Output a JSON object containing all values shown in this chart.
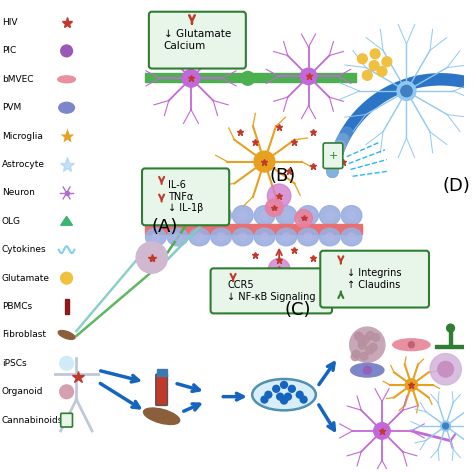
{
  "background_color": "#ffffff",
  "legend_labels": [
    "HIV",
    "PIC",
    "bMVEC",
    "PVM",
    "Microglia",
    "Astrocyte",
    "Neuron",
    "OLG",
    "Cytokines",
    "Glutamate",
    "PBMCs",
    "Fibroblast",
    "iPSCs",
    "Organoid",
    "Cannabinoids"
  ],
  "box_A_text": "(A)",
  "box_B_text": "(B)",
  "box_C_text": "(C)",
  "box_D_text": "(D)",
  "box_glut_text": "↓ Glutamate\nCalcium",
  "box_il6_text": "IL-6\nTNFα\n↓ IL-1β",
  "box_ccr5_text": "CCR5\n↓ NF-κB Signaling",
  "box_integ_text": "↓ Integrins\n↑ Claudins",
  "neuron_purple": "#c368d8",
  "neuron_purple2": "#ab47bc",
  "microglia_color": "#e8a020",
  "astrocyte_color": "#90c8f0",
  "bbb_cell_color": "#9baee0",
  "bbb_stripe_color": "#e87070",
  "green_bar_color": "#4caf50",
  "arrow_blue": "#1565c0",
  "arrow_red": "#c0392b",
  "box_green_edge": "#2e7d32",
  "box_green_bg": "#e8f5e9",
  "glutamate_color": "#f0c040",
  "body_color": "#e8e8f0",
  "brain_color": "#c8a0c0"
}
